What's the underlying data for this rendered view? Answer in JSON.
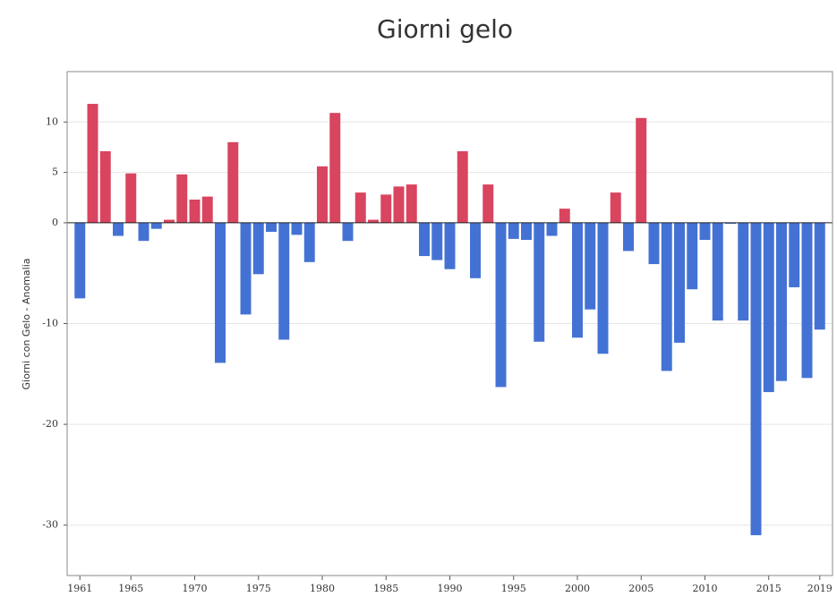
{
  "chart_data": {
    "type": "bar",
    "title": "Giorni gelo",
    "y_label": "Giorni con Gelo - Anomalia",
    "x": [
      1961,
      1962,
      1963,
      1964,
      1965,
      1966,
      1967,
      1968,
      1969,
      1970,
      1971,
      1972,
      1973,
      1974,
      1975,
      1976,
      1977,
      1978,
      1979,
      1980,
      1981,
      1982,
      1983,
      1984,
      1985,
      1986,
      1987,
      1988,
      1989,
      1990,
      1991,
      1992,
      1993,
      1994,
      1995,
      1996,
      1997,
      1998,
      1999,
      2000,
      2001,
      2002,
      2003,
      2004,
      2005,
      2006,
      2007,
      2008,
      2009,
      2010,
      2011,
      2012,
      2013,
      2014,
      2015,
      2016,
      2017,
      2018,
      2019
    ],
    "values": [
      -7.5,
      11.8,
      7.1,
      -1.3,
      4.9,
      -1.8,
      -0.6,
      0.3,
      4.8,
      2.3,
      2.6,
      -13.9,
      8.0,
      -9.1,
      -5.1,
      -0.9,
      -11.6,
      -1.2,
      -3.9,
      5.6,
      10.9,
      -1.8,
      3.0,
      0.3,
      2.8,
      3.6,
      3.8,
      -3.3,
      -3.7,
      -4.6,
      7.1,
      -5.5,
      3.8,
      -16.3,
      -1.6,
      -1.7,
      -11.8,
      -1.3,
      1.4,
      -11.4,
      -8.6,
      -13.0,
      3.0,
      -2.8,
      10.4,
      -4.1,
      -14.7,
      -11.9,
      -6.6,
      -1.7,
      -9.7,
      -0.1,
      -9.7,
      -31.0,
      -16.8,
      -15.7,
      -6.4,
      -15.4,
      -10.6
    ],
    "positive_color": "#d9445f",
    "negative_color": "#4472d4",
    "xlim": [
      1960,
      2020
    ],
    "xticks": [
      1961,
      1965,
      1970,
      1975,
      1980,
      1985,
      1990,
      1995,
      2000,
      2005,
      2010,
      2015,
      2019
    ],
    "ylim": [
      -35,
      15
    ],
    "yticks": [
      -30,
      -20,
      -10,
      0,
      5,
      10
    ],
    "grid": true
  }
}
